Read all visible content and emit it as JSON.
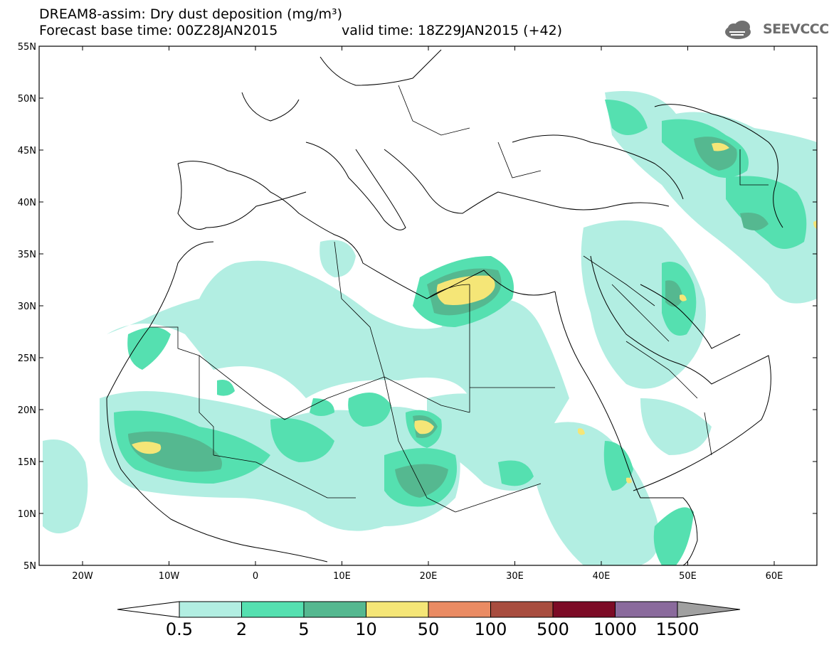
{
  "title": {
    "line1": "DREAM8-assim: Dry dust deposition (mg/m³)",
    "line2a": "Forecast base time: 00Z28JAN2015",
    "line2b": "valid time: 18Z29JAN2015 (+42)"
  },
  "logo": {
    "text": "SEEVCCC",
    "icon": "cloud-icon"
  },
  "axes": {
    "lat_labels": [
      "55N",
      "50N",
      "45N",
      "40N",
      "35N",
      "30N",
      "25N",
      "20N",
      "15N",
      "10N",
      "5N"
    ],
    "lon_labels": [
      "20W",
      "10W",
      "0",
      "10E",
      "20E",
      "30E",
      "40E",
      "50E",
      "60E"
    ]
  },
  "colorbar": {
    "labels": [
      "0.5",
      "2",
      "5",
      "10",
      "50",
      "100",
      "500",
      "1000",
      "1500"
    ],
    "colors": [
      "#b2eee2",
      "#55e0b0",
      "#55b890",
      "#f5e677",
      "#ea8b63",
      "#a84d3f",
      "#7c0b26",
      "#8a6a9c"
    ],
    "under_color": "#ffffff",
    "over_color": "#a0a0a0"
  }
}
